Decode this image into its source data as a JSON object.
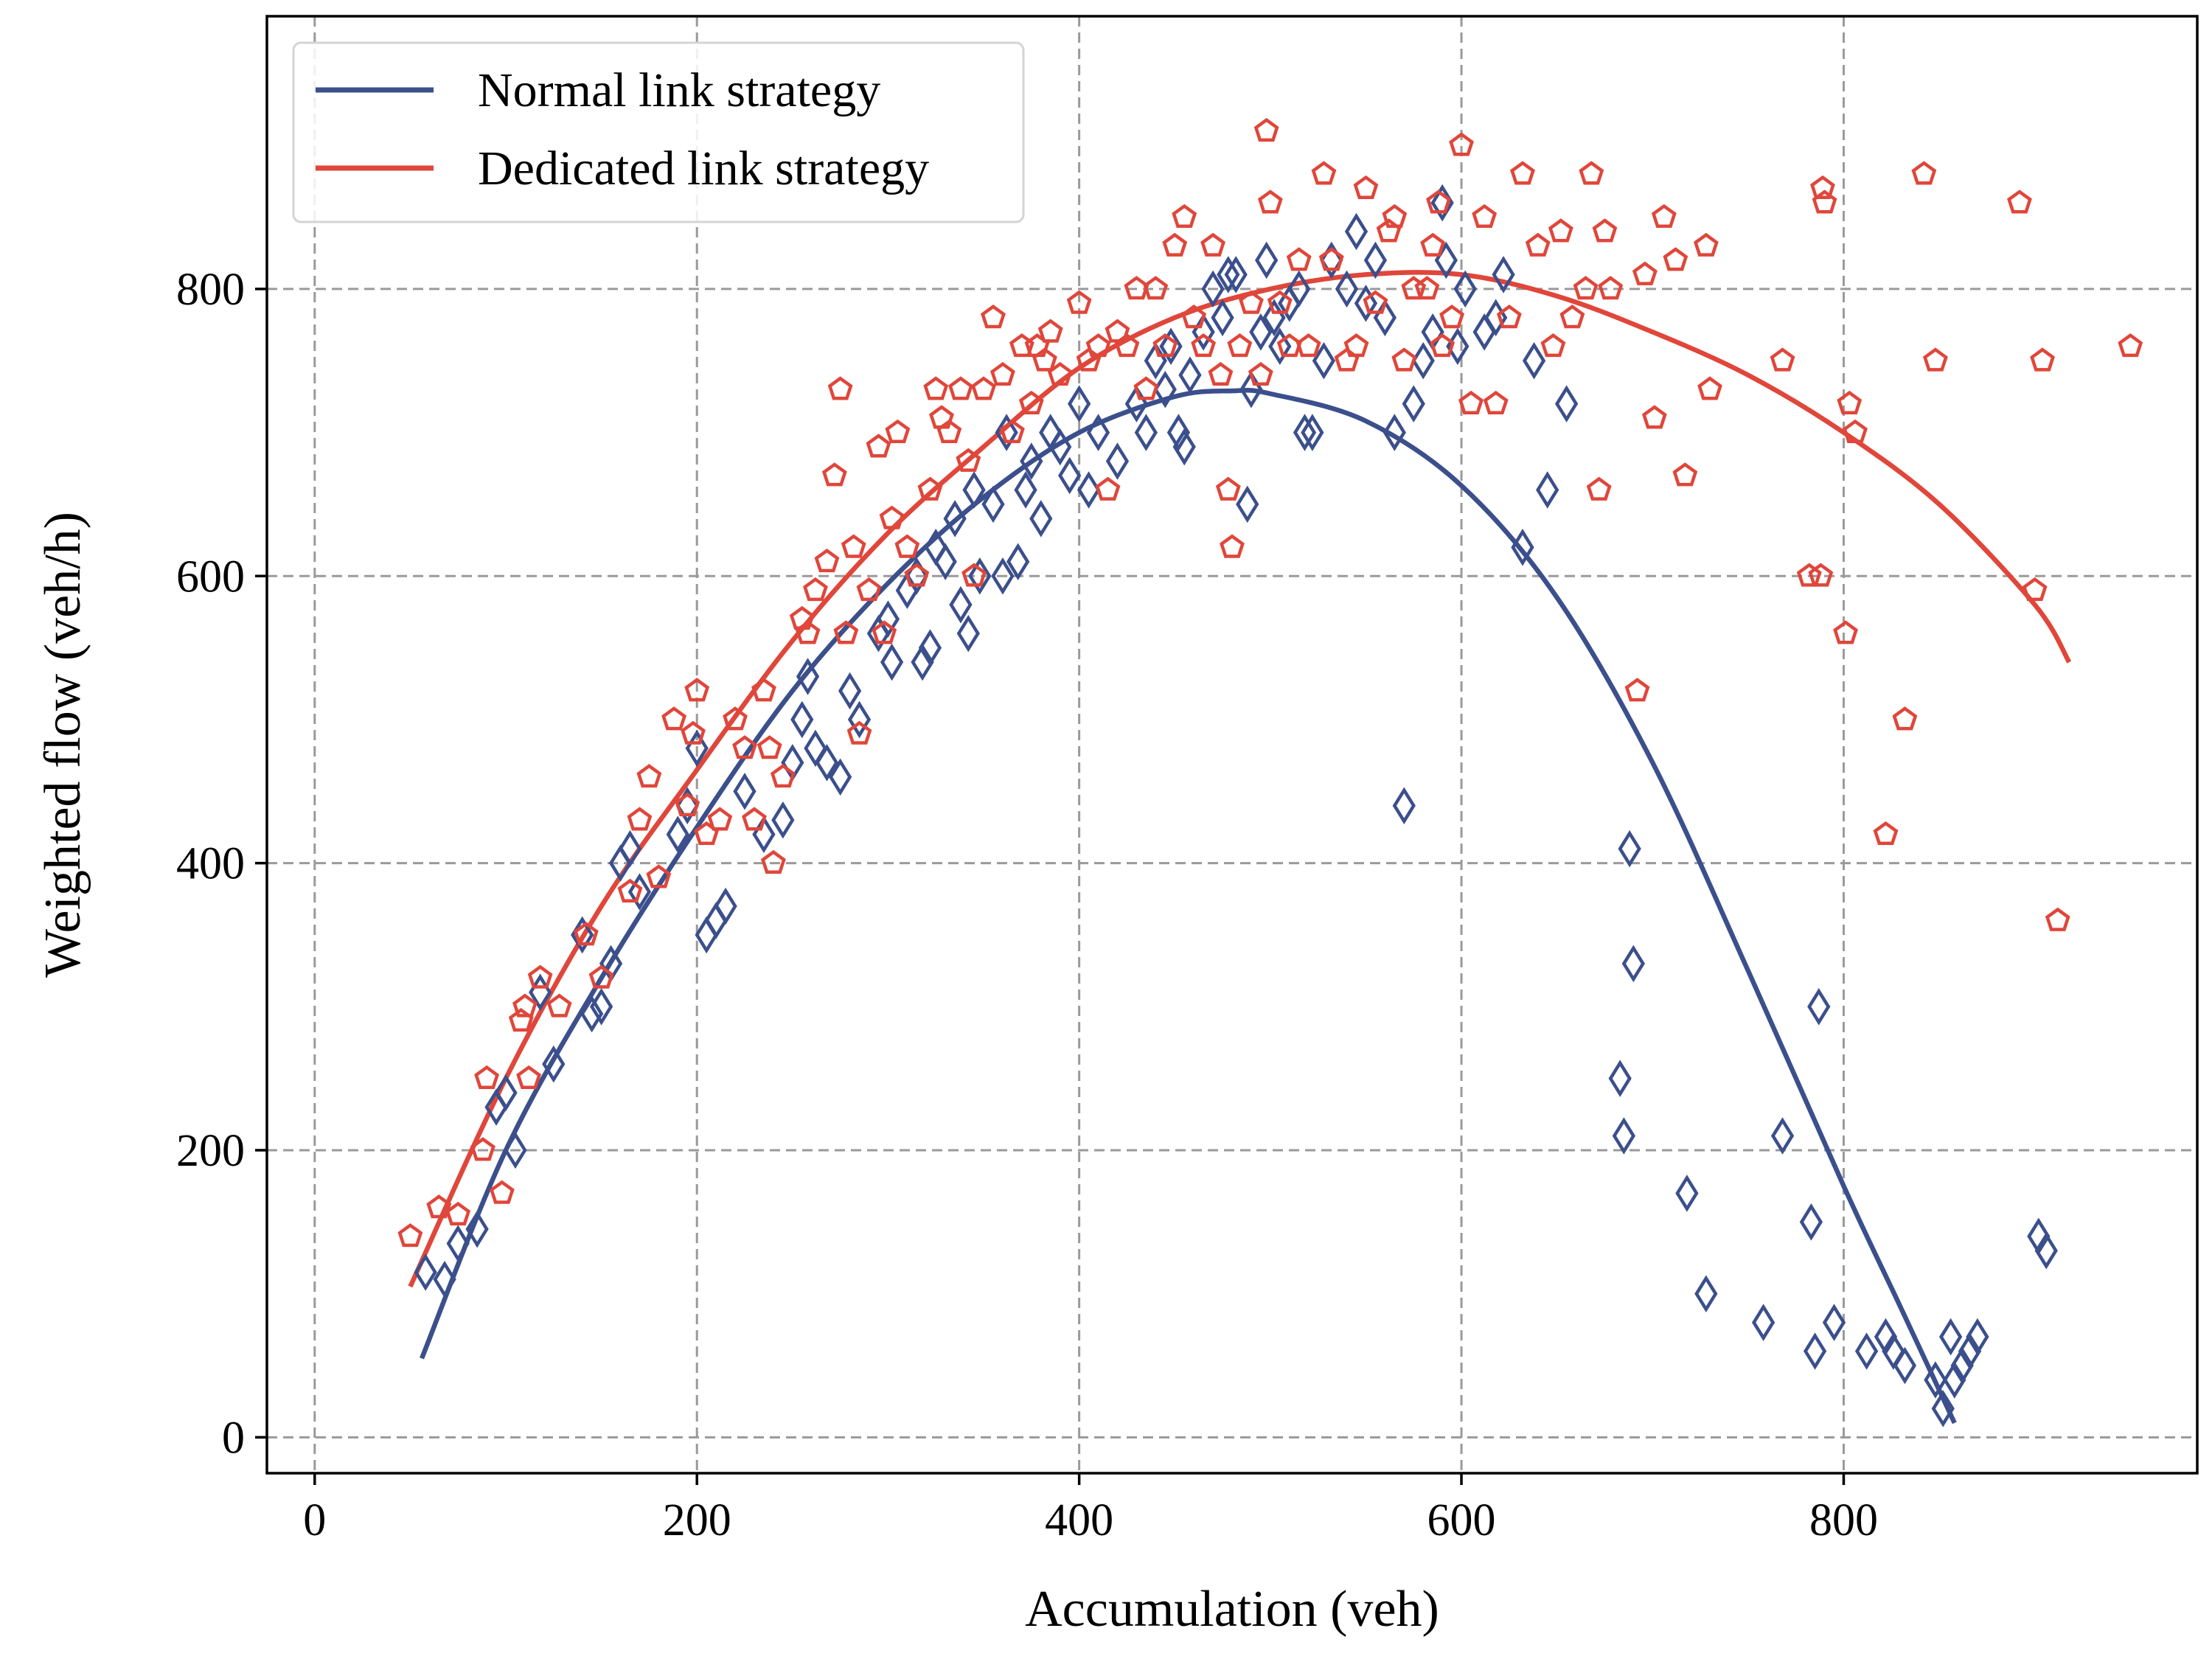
{
  "chart_data": {
    "type": "scatter",
    "xlabel": "Accumulation (veh)",
    "ylabel": "Weighted flow (veh/h)",
    "xlim": [
      -25,
      985
    ],
    "ylim": [
      -25,
      990
    ],
    "xticks": [
      0,
      200,
      400,
      600,
      800
    ],
    "yticks": [
      0,
      200,
      400,
      600,
      800
    ],
    "xtick_labels": [
      "0",
      "200",
      "400",
      "600",
      "800"
    ],
    "ytick_labels": [
      "0",
      "200",
      "400",
      "600",
      "800"
    ],
    "grid": true,
    "legend_position": "top-left",
    "legend": [
      {
        "label": "Normal link strategy",
        "color": "#3b4f8c"
      },
      {
        "label": "Dedicated link strategy",
        "color": "#e0463a"
      }
    ],
    "curves": [
      {
        "legend_label": "Normal link strategy",
        "color": "#3b4f8c",
        "x": [
          56,
          100,
          150,
          200,
          250,
          300,
          350,
          400,
          450,
          480,
          500,
          550,
          600,
          650,
          700,
          750,
          800,
          830,
          858
        ],
        "y": [
          55,
          200,
          320,
          425,
          520,
          595,
          655,
          700,
          725,
          729,
          727,
          708,
          663,
          585,
          470,
          325,
          175,
          90,
          10
        ]
      },
      {
        "legend_label": "Dedicated link strategy",
        "color": "#e0463a",
        "x": [
          50,
          100,
          150,
          200,
          250,
          300,
          350,
          400,
          450,
          500,
          550,
          600,
          650,
          700,
          750,
          800,
          850,
          900,
          918
        ],
        "y": [
          105,
          250,
          370,
          465,
          555,
          630,
          690,
          745,
          780,
          800,
          810,
          810,
          795,
          770,
          740,
          700,
          650,
          580,
          540
        ]
      }
    ],
    "series": [
      {
        "name": "Normal link strategy",
        "marker": "diamond",
        "color": "#3b4f8c",
        "points": [
          [
            58,
            115
          ],
          [
            68,
            110
          ],
          [
            75,
            135
          ],
          [
            85,
            145
          ],
          [
            95,
            230
          ],
          [
            100,
            240
          ],
          [
            105,
            200
          ],
          [
            118,
            310
          ],
          [
            125,
            260
          ],
          [
            140,
            350
          ],
          [
            145,
            295
          ],
          [
            150,
            300
          ],
          [
            155,
            330
          ],
          [
            160,
            400
          ],
          [
            165,
            410
          ],
          [
            170,
            380
          ],
          [
            190,
            420
          ],
          [
            195,
            440
          ],
          [
            200,
            480
          ],
          [
            205,
            350
          ],
          [
            210,
            360
          ],
          [
            215,
            370
          ],
          [
            225,
            450
          ],
          [
            235,
            420
          ],
          [
            245,
            430
          ],
          [
            250,
            470
          ],
          [
            255,
            500
          ],
          [
            258,
            530
          ],
          [
            262,
            480
          ],
          [
            268,
            470
          ],
          [
            275,
            460
          ],
          [
            280,
            520
          ],
          [
            285,
            500
          ],
          [
            295,
            560
          ],
          [
            300,
            570
          ],
          [
            302,
            540
          ],
          [
            310,
            590
          ],
          [
            315,
            600
          ],
          [
            318,
            540
          ],
          [
            322,
            550
          ],
          [
            325,
            620
          ],
          [
            330,
            610
          ],
          [
            335,
            640
          ],
          [
            338,
            580
          ],
          [
            342,
            560
          ],
          [
            345,
            660
          ],
          [
            348,
            600
          ],
          [
            355,
            650
          ],
          [
            360,
            600
          ],
          [
            362,
            700
          ],
          [
            368,
            610
          ],
          [
            372,
            660
          ],
          [
            375,
            680
          ],
          [
            380,
            640
          ],
          [
            385,
            700
          ],
          [
            390,
            690
          ],
          [
            395,
            670
          ],
          [
            400,
            720
          ],
          [
            405,
            660
          ],
          [
            410,
            700
          ],
          [
            420,
            680
          ],
          [
            430,
            720
          ],
          [
            435,
            700
          ],
          [
            440,
            750
          ],
          [
            445,
            730
          ],
          [
            448,
            760
          ],
          [
            452,
            700
          ],
          [
            455,
            690
          ],
          [
            458,
            740
          ],
          [
            465,
            770
          ],
          [
            470,
            800
          ],
          [
            475,
            780
          ],
          [
            478,
            810
          ],
          [
            482,
            810
          ],
          [
            488,
            650
          ],
          [
            490,
            730
          ],
          [
            495,
            770
          ],
          [
            498,
            820
          ],
          [
            502,
            780
          ],
          [
            505,
            760
          ],
          [
            510,
            790
          ],
          [
            515,
            800
          ],
          [
            518,
            700
          ],
          [
            522,
            700
          ],
          [
            528,
            750
          ],
          [
            532,
            820
          ],
          [
            540,
            800
          ],
          [
            545,
            840
          ],
          [
            550,
            790
          ],
          [
            555,
            820
          ],
          [
            560,
            780
          ],
          [
            565,
            700
          ],
          [
            570,
            440
          ],
          [
            575,
            720
          ],
          [
            580,
            750
          ],
          [
            585,
            770
          ],
          [
            590,
            860
          ],
          [
            592,
            820
          ],
          [
            598,
            760
          ],
          [
            602,
            800
          ],
          [
            612,
            770
          ],
          [
            618,
            780
          ],
          [
            622,
            810
          ],
          [
            632,
            620
          ],
          [
            638,
            750
          ],
          [
            645,
            660
          ],
          [
            655,
            720
          ],
          [
            688,
            410
          ],
          [
            690,
            330
          ],
          [
            683,
            250
          ],
          [
            685,
            210
          ],
          [
            718,
            170
          ],
          [
            728,
            100
          ],
          [
            758,
            80
          ],
          [
            768,
            210
          ],
          [
            783,
            150
          ],
          [
            785,
            60
          ],
          [
            787,
            300
          ],
          [
            795,
            80
          ],
          [
            812,
            60
          ],
          [
            822,
            70
          ],
          [
            826,
            60
          ],
          [
            832,
            50
          ],
          [
            848,
            40
          ],
          [
            852,
            20
          ],
          [
            856,
            70
          ],
          [
            858,
            40
          ],
          [
            862,
            50
          ],
          [
            866,
            60
          ],
          [
            870,
            70
          ],
          [
            902,
            140
          ],
          [
            906,
            130
          ]
        ]
      },
      {
        "name": "Dedicated link strategy",
        "marker": "pentagon",
        "color": "#e0463a",
        "points": [
          [
            50,
            140
          ],
          [
            65,
            160
          ],
          [
            75,
            155
          ],
          [
            88,
            200
          ],
          [
            90,
            250
          ],
          [
            98,
            170
          ],
          [
            108,
            290
          ],
          [
            110,
            300
          ],
          [
            112,
            250
          ],
          [
            118,
            320
          ],
          [
            128,
            300
          ],
          [
            142,
            350
          ],
          [
            150,
            320
          ],
          [
            165,
            380
          ],
          [
            170,
            430
          ],
          [
            175,
            460
          ],
          [
            180,
            390
          ],
          [
            188,
            500
          ],
          [
            195,
            440
          ],
          [
            198,
            490
          ],
          [
            200,
            520
          ],
          [
            205,
            420
          ],
          [
            212,
            430
          ],
          [
            220,
            500
          ],
          [
            225,
            480
          ],
          [
            230,
            430
          ],
          [
            235,
            520
          ],
          [
            238,
            480
          ],
          [
            240,
            400
          ],
          [
            245,
            460
          ],
          [
            255,
            570
          ],
          [
            258,
            560
          ],
          [
            262,
            590
          ],
          [
            268,
            610
          ],
          [
            272,
            670
          ],
          [
            275,
            730
          ],
          [
            278,
            560
          ],
          [
            282,
            620
          ],
          [
            285,
            490
          ],
          [
            290,
            590
          ],
          [
            295,
            690
          ],
          [
            298,
            560
          ],
          [
            302,
            640
          ],
          [
            305,
            700
          ],
          [
            310,
            620
          ],
          [
            315,
            600
          ],
          [
            322,
            660
          ],
          [
            325,
            730
          ],
          [
            328,
            710
          ],
          [
            332,
            700
          ],
          [
            338,
            730
          ],
          [
            342,
            680
          ],
          [
            345,
            600
          ],
          [
            350,
            730
          ],
          [
            355,
            780
          ],
          [
            360,
            740
          ],
          [
            365,
            700
          ],
          [
            370,
            760
          ],
          [
            375,
            720
          ],
          [
            378,
            760
          ],
          [
            382,
            750
          ],
          [
            385,
            770
          ],
          [
            390,
            740
          ],
          [
            400,
            790
          ],
          [
            405,
            750
          ],
          [
            410,
            760
          ],
          [
            415,
            660
          ],
          [
            420,
            770
          ],
          [
            425,
            760
          ],
          [
            430,
            800
          ],
          [
            435,
            730
          ],
          [
            440,
            800
          ],
          [
            445,
            760
          ],
          [
            450,
            830
          ],
          [
            455,
            850
          ],
          [
            460,
            780
          ],
          [
            465,
            760
          ],
          [
            470,
            830
          ],
          [
            474,
            740
          ],
          [
            478,
            660
          ],
          [
            480,
            620
          ],
          [
            484,
            760
          ],
          [
            490,
            790
          ],
          [
            495,
            740
          ],
          [
            498,
            910
          ],
          [
            500,
            860
          ],
          [
            505,
            790
          ],
          [
            510,
            760
          ],
          [
            515,
            820
          ],
          [
            520,
            760
          ],
          [
            528,
            880
          ],
          [
            532,
            820
          ],
          [
            540,
            750
          ],
          [
            545,
            760
          ],
          [
            550,
            870
          ],
          [
            555,
            790
          ],
          [
            562,
            840
          ],
          [
            565,
            850
          ],
          [
            570,
            750
          ],
          [
            575,
            800
          ],
          [
            582,
            800
          ],
          [
            585,
            830
          ],
          [
            588,
            860
          ],
          [
            590,
            760
          ],
          [
            595,
            780
          ],
          [
            600,
            900
          ],
          [
            605,
            720
          ],
          [
            612,
            850
          ],
          [
            618,
            720
          ],
          [
            625,
            780
          ],
          [
            632,
            880
          ],
          [
            640,
            830
          ],
          [
            648,
            760
          ],
          [
            652,
            840
          ],
          [
            658,
            780
          ],
          [
            665,
            800
          ],
          [
            668,
            880
          ],
          [
            672,
            660
          ],
          [
            675,
            840
          ],
          [
            678,
            800
          ],
          [
            692,
            520
          ],
          [
            696,
            810
          ],
          [
            701,
            710
          ],
          [
            706,
            850
          ],
          [
            712,
            820
          ],
          [
            717,
            670
          ],
          [
            728,
            830
          ],
          [
            730,
            730
          ],
          [
            768,
            750
          ],
          [
            782,
            600
          ],
          [
            788,
            600
          ],
          [
            789,
            870
          ],
          [
            790,
            860
          ],
          [
            801,
            560
          ],
          [
            803,
            720
          ],
          [
            806,
            700
          ],
          [
            822,
            420
          ],
          [
            832,
            500
          ],
          [
            842,
            880
          ],
          [
            848,
            750
          ],
          [
            892,
            860
          ],
          [
            900,
            590
          ],
          [
            904,
            750
          ],
          [
            912,
            360
          ],
          [
            950,
            760
          ]
        ]
      }
    ]
  }
}
